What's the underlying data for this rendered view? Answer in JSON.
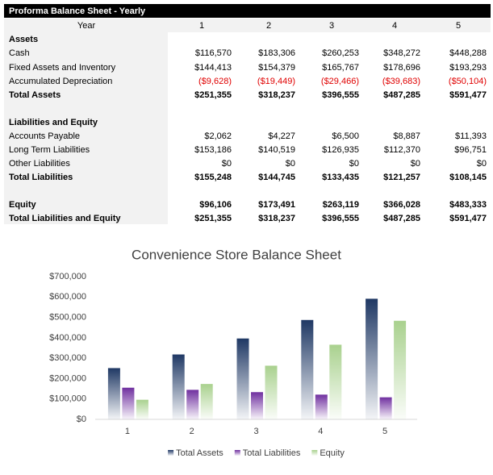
{
  "table": {
    "title": "Proforma Balance Sheet - Yearly",
    "year_label": "Year",
    "columns": [
      "1",
      "2",
      "3",
      "4",
      "5"
    ],
    "rows": [
      [
        "Assets"
      ],
      [
        "Cash",
        "$116,570",
        "$183,306",
        "$260,253",
        "$348,272",
        "$448,288"
      ],
      [
        "Fixed Assets and Inventory",
        "$144,413",
        "$154,379",
        "$165,767",
        "$178,696",
        "$193,293"
      ],
      [
        "Accumulated Depreciation",
        "($9,628)",
        "($19,449)",
        "($29,466)",
        "($39,683)",
        "($50,104)"
      ],
      [
        "Total Assets",
        "$251,355",
        "$318,237",
        "$396,555",
        "$487,285",
        "$591,477"
      ],
      [
        "Liabilities and Equity"
      ],
      [
        "Accounts Payable",
        "$2,062",
        "$4,227",
        "$6,500",
        "$8,887",
        "$11,393"
      ],
      [
        "Long Term Liabilities",
        "$153,186",
        "$140,519",
        "$126,935",
        "$112,370",
        "$96,751"
      ],
      [
        "Other Liabilities",
        "$0",
        "$0",
        "$0",
        "$0",
        "$0"
      ],
      [
        "Total Liabilities",
        "$155,248",
        "$144,745",
        "$133,435",
        "$121,257",
        "$108,145"
      ],
      [
        "Equity",
        "$96,106",
        "$173,491",
        "$263,119",
        "$366,028",
        "$483,333"
      ],
      [
        "Total Liabilities and Equity",
        "$251,355",
        "$318,237",
        "$396,555",
        "$487,285",
        "$591,477"
      ]
    ]
  },
  "chart_data": {
    "type": "bar",
    "title": "Convenience Store Balance Sheet",
    "categories": [
      "1",
      "2",
      "3",
      "4",
      "5"
    ],
    "series": [
      {
        "name": "Total Assets",
        "color": "#1f3864",
        "values": [
          251355,
          318237,
          396555,
          487285,
          591477
        ]
      },
      {
        "name": "Total Liabilities",
        "color": "#7030a0",
        "values": [
          155248,
          144745,
          133435,
          121257,
          108145
        ]
      },
      {
        "name": "Equity",
        "color": "#a9d18e",
        "values": [
          96106,
          173491,
          263119,
          366028,
          483333
        ]
      }
    ],
    "ylim": [
      0,
      700000
    ],
    "yticks": [
      {
        "value": 0,
        "label": "$0"
      },
      {
        "value": 100000,
        "label": "$100,000"
      },
      {
        "value": 200000,
        "label": "$200,000"
      },
      {
        "value": 300000,
        "label": "$300,000"
      },
      {
        "value": 400000,
        "label": "$400,000"
      },
      {
        "value": 500000,
        "label": "$500,000"
      },
      {
        "value": 600000,
        "label": "$600,000"
      },
      {
        "value": 700000,
        "label": "$700,000"
      }
    ],
    "grid": false,
    "legend": "bottom"
  }
}
